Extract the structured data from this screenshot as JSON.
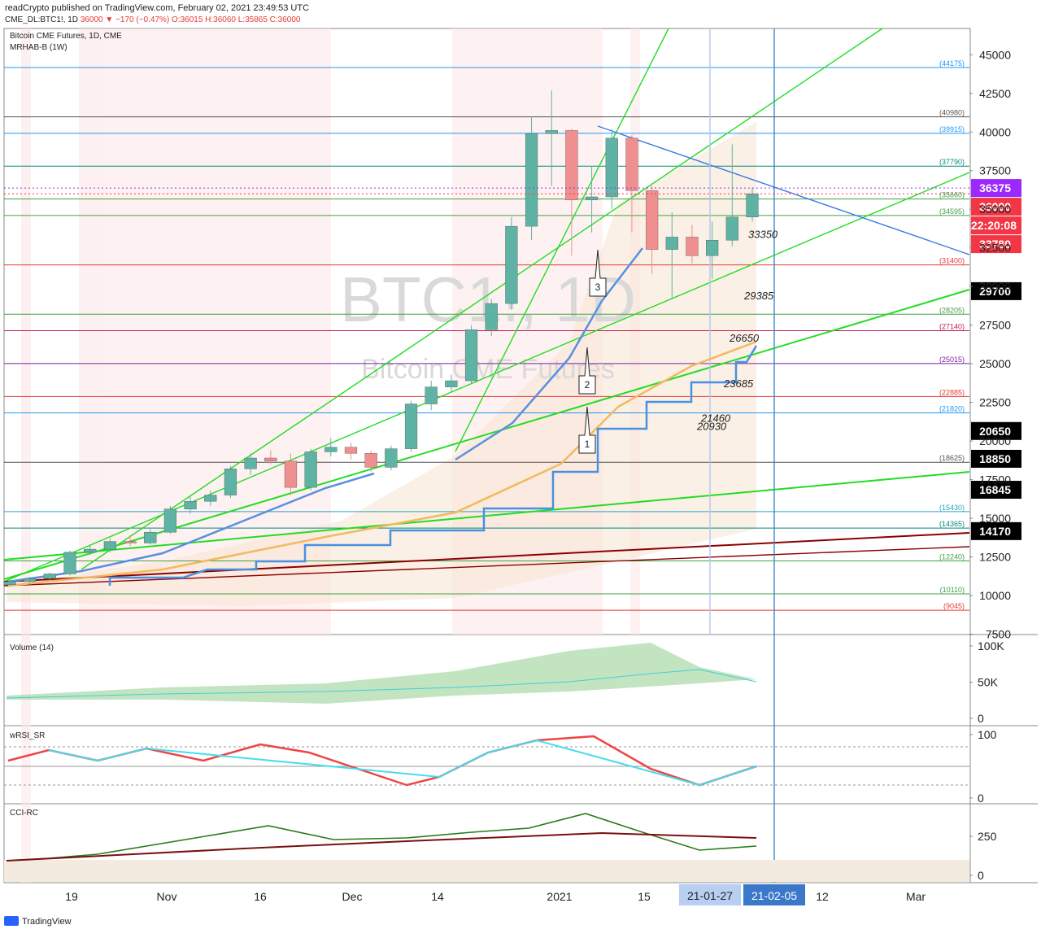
{
  "header": {
    "line1": "readCrypto published on TradingView.com, February 02, 2021 23:49:53 UTC",
    "symbol": "CME_DL:BTC1!, 1D",
    "last": "36000",
    "change": "▼ −170 (−0.47%)",
    "ohlc": "O:36015 H:36060 L:35865 C:36000"
  },
  "chart_data": {
    "type": "candlestick",
    "title": "Bitcoin CME Futures, 1D, CME",
    "subtitle": "MRHAB-B (1W)",
    "watermark": "BTC1!, 1D",
    "watermark2": "Bitcoin CME Futures",
    "up_color": "#5fb3a4",
    "down_color": "#ef8f8f",
    "candles": [
      [
        10700,
        11000,
        10600,
        10900
      ],
      [
        10900,
        11200,
        10800,
        11100
      ],
      [
        11100,
        11500,
        11000,
        11400
      ],
      [
        11400,
        12900,
        11300,
        12800
      ],
      [
        12800,
        13300,
        12600,
        13000
      ],
      [
        13000,
        13700,
        12800,
        13500
      ],
      [
        13500,
        13900,
        13200,
        13400
      ],
      [
        13400,
        14300,
        13300,
        14100
      ],
      [
        14100,
        15800,
        14000,
        15600
      ],
      [
        15600,
        16400,
        15300,
        16100
      ],
      [
        16100,
        16800,
        15800,
        16500
      ],
      [
        16500,
        18400,
        16300,
        18200
      ],
      [
        18200,
        19200,
        17800,
        18900
      ],
      [
        18900,
        19400,
        18500,
        18700
      ],
      [
        18700,
        19200,
        16500,
        17000
      ],
      [
        17000,
        19500,
        16800,
        19300
      ],
      [
        19300,
        20200,
        19000,
        19600
      ],
      [
        19600,
        19900,
        18800,
        19200
      ],
      [
        19200,
        19400,
        18000,
        18300
      ],
      [
        18300,
        19700,
        18100,
        19500
      ],
      [
        19500,
        22600,
        19300,
        22400
      ],
      [
        22400,
        23900,
        22000,
        23500
      ],
      [
        23500,
        24300,
        23200,
        23900
      ],
      [
        23900,
        27500,
        23700,
        27200
      ],
      [
        27200,
        29200,
        26800,
        28900
      ],
      [
        28900,
        34500,
        28500,
        33900
      ],
      [
        33900,
        41000,
        33000,
        39900
      ],
      [
        39900,
        42700,
        36500,
        40100
      ],
      [
        40100,
        40200,
        32000,
        35600
      ],
      [
        35600,
        37800,
        33500,
        35800
      ],
      [
        35800,
        40200,
        35000,
        39600
      ],
      [
        39600,
        39800,
        33500,
        36200
      ],
      [
        36200,
        36500,
        30800,
        32400
      ],
      [
        32400,
        34800,
        29200,
        33200
      ],
      [
        33200,
        34000,
        31500,
        32000
      ],
      [
        32000,
        34200,
        30500,
        33000
      ],
      [
        33000,
        39200,
        32600,
        34500
      ],
      [
        34500,
        36400,
        34200,
        36000
      ]
    ],
    "ylim": [
      7475,
      46700
    ],
    "yticks": [
      45000,
      42500,
      40000,
      37500,
      35000,
      32500,
      30000,
      27500,
      25000,
      22500,
      20000,
      17500,
      15000,
      12500,
      10000,
      7500
    ],
    "levels": [
      {
        "value": 44175,
        "label": "(44175)",
        "color": "#2196f3"
      },
      {
        "value": 40980,
        "label": "(40980)",
        "color": "#555555"
      },
      {
        "value": 39915,
        "label": "(39915)",
        "color": "#2196f3"
      },
      {
        "value": 37790,
        "label": "(37790)",
        "color": "#00897b"
      },
      {
        "value": 35660,
        "label": "(35660)",
        "color": "#43a047"
      },
      {
        "value": 34595,
        "label": "(34595)",
        "color": "#43a047"
      },
      {
        "value": 31400,
        "label": "(31400)",
        "color": "#e53935"
      },
      {
        "value": 28205,
        "label": "(28205)",
        "color": "#43a047"
      },
      {
        "value": 27140,
        "label": "(27140)",
        "color": "#c2185b"
      },
      {
        "value": 25015,
        "label": "(25015)",
        "color": "#7b1fa2"
      },
      {
        "value": 22885,
        "label": "(22885)",
        "color": "#e53935"
      },
      {
        "value": 21820,
        "label": "(21820)",
        "color": "#2196f3"
      },
      {
        "value": 18625,
        "label": "(18625)",
        "color": "#555555"
      },
      {
        "value": 15430,
        "label": "(15430)",
        "color": "#29a3c4"
      },
      {
        "value": 14365,
        "label": "(14365)",
        "color": "#00897b"
      },
      {
        "value": 12240,
        "label": "(12240)",
        "color": "#43a047"
      },
      {
        "value": 10110,
        "label": "(10110)",
        "color": "#43a047"
      },
      {
        "value": 9045,
        "label": "(9045)",
        "color": "#e53935"
      }
    ],
    "annotations": [
      33350,
      29385,
      26650,
      23685,
      21460,
      20930
    ],
    "callouts": [
      "1",
      "2",
      "3"
    ],
    "price_badges": [
      {
        "value": 36375,
        "color": "#9c27ff"
      },
      {
        "value": 36000,
        "color": "#f23645"
      },
      {
        "value": 33780,
        "color": "#f23645"
      },
      {
        "value": 29700,
        "color": "#000000"
      },
      {
        "value": 20650,
        "color": "#000000"
      },
      {
        "value": 18850,
        "color": "#000000"
      },
      {
        "value": 16845,
        "color": "#000000"
      },
      {
        "value": 14170,
        "color": "#000000"
      }
    ],
    "countdown": "22:20:08",
    "x_labels": [
      "19",
      "Nov",
      "16",
      "Dec",
      "14",
      "2021",
      "15",
      "12",
      "Mar"
    ],
    "date_badges": [
      "21-01-27",
      "21-02-05"
    ]
  },
  "panels": [
    {
      "title": "Volume (14)",
      "ylim": [
        0,
        107900
      ],
      "yticks": [
        {
          "value": 100000,
          "label": "100K"
        },
        {
          "value": 50000,
          "label": "50K"
        },
        0
      ]
    },
    {
      "title": "wRSI_SR",
      "ylim": [
        -9,
        110
      ],
      "yticks": [
        100,
        0
      ]
    },
    {
      "title": "CCI-RC",
      "ylim": [
        -57,
        448
      ],
      "yticks": [
        250,
        0
      ]
    }
  ],
  "footer": "TradingView"
}
